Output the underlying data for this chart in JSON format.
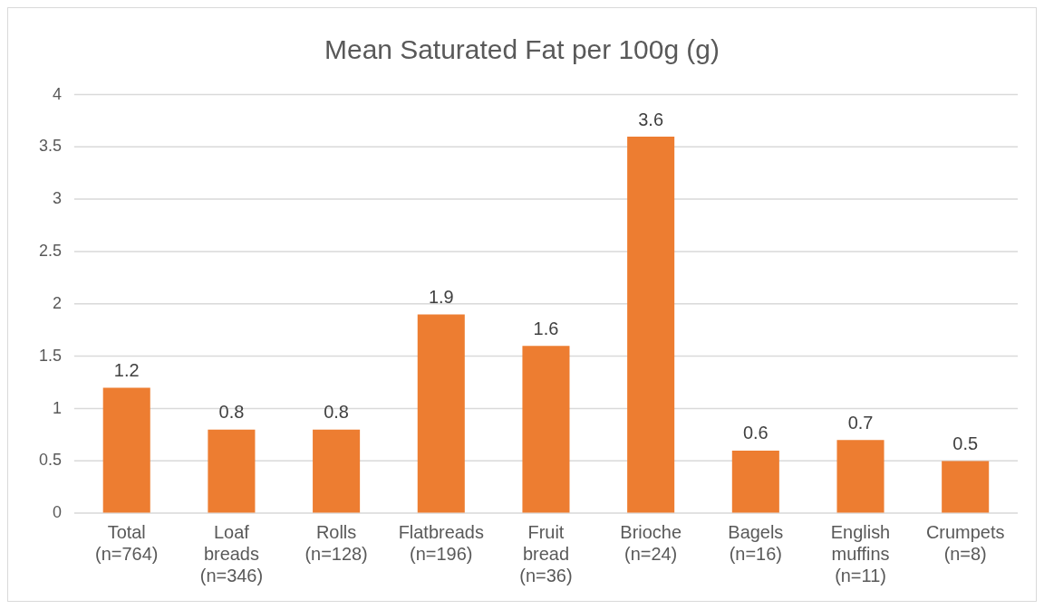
{
  "chart_data": {
    "type": "bar",
    "title": "Mean Saturated Fat per 100g (g)",
    "categories": [
      "Total (n=764)",
      "Loaf breads (n=346)",
      "Rolls (n=128)",
      "Flatbreads (n=196)",
      "Fruit bread (n=36)",
      "Brioche (n=24)",
      "Bagels (n=16)",
      "English muffins (n=11)",
      "Crumpets (n=8)"
    ],
    "values": [
      1.2,
      0.8,
      0.8,
      1.9,
      1.6,
      3.6,
      0.6,
      0.7,
      0.5
    ],
    "color": "#ed7d31",
    "ylim": [
      0,
      4
    ],
    "yticks": [
      0,
      0.5,
      1,
      1.5,
      2,
      2.5,
      3,
      3.5,
      4
    ],
    "grid": "y",
    "data_labels": true,
    "legend": false
  }
}
